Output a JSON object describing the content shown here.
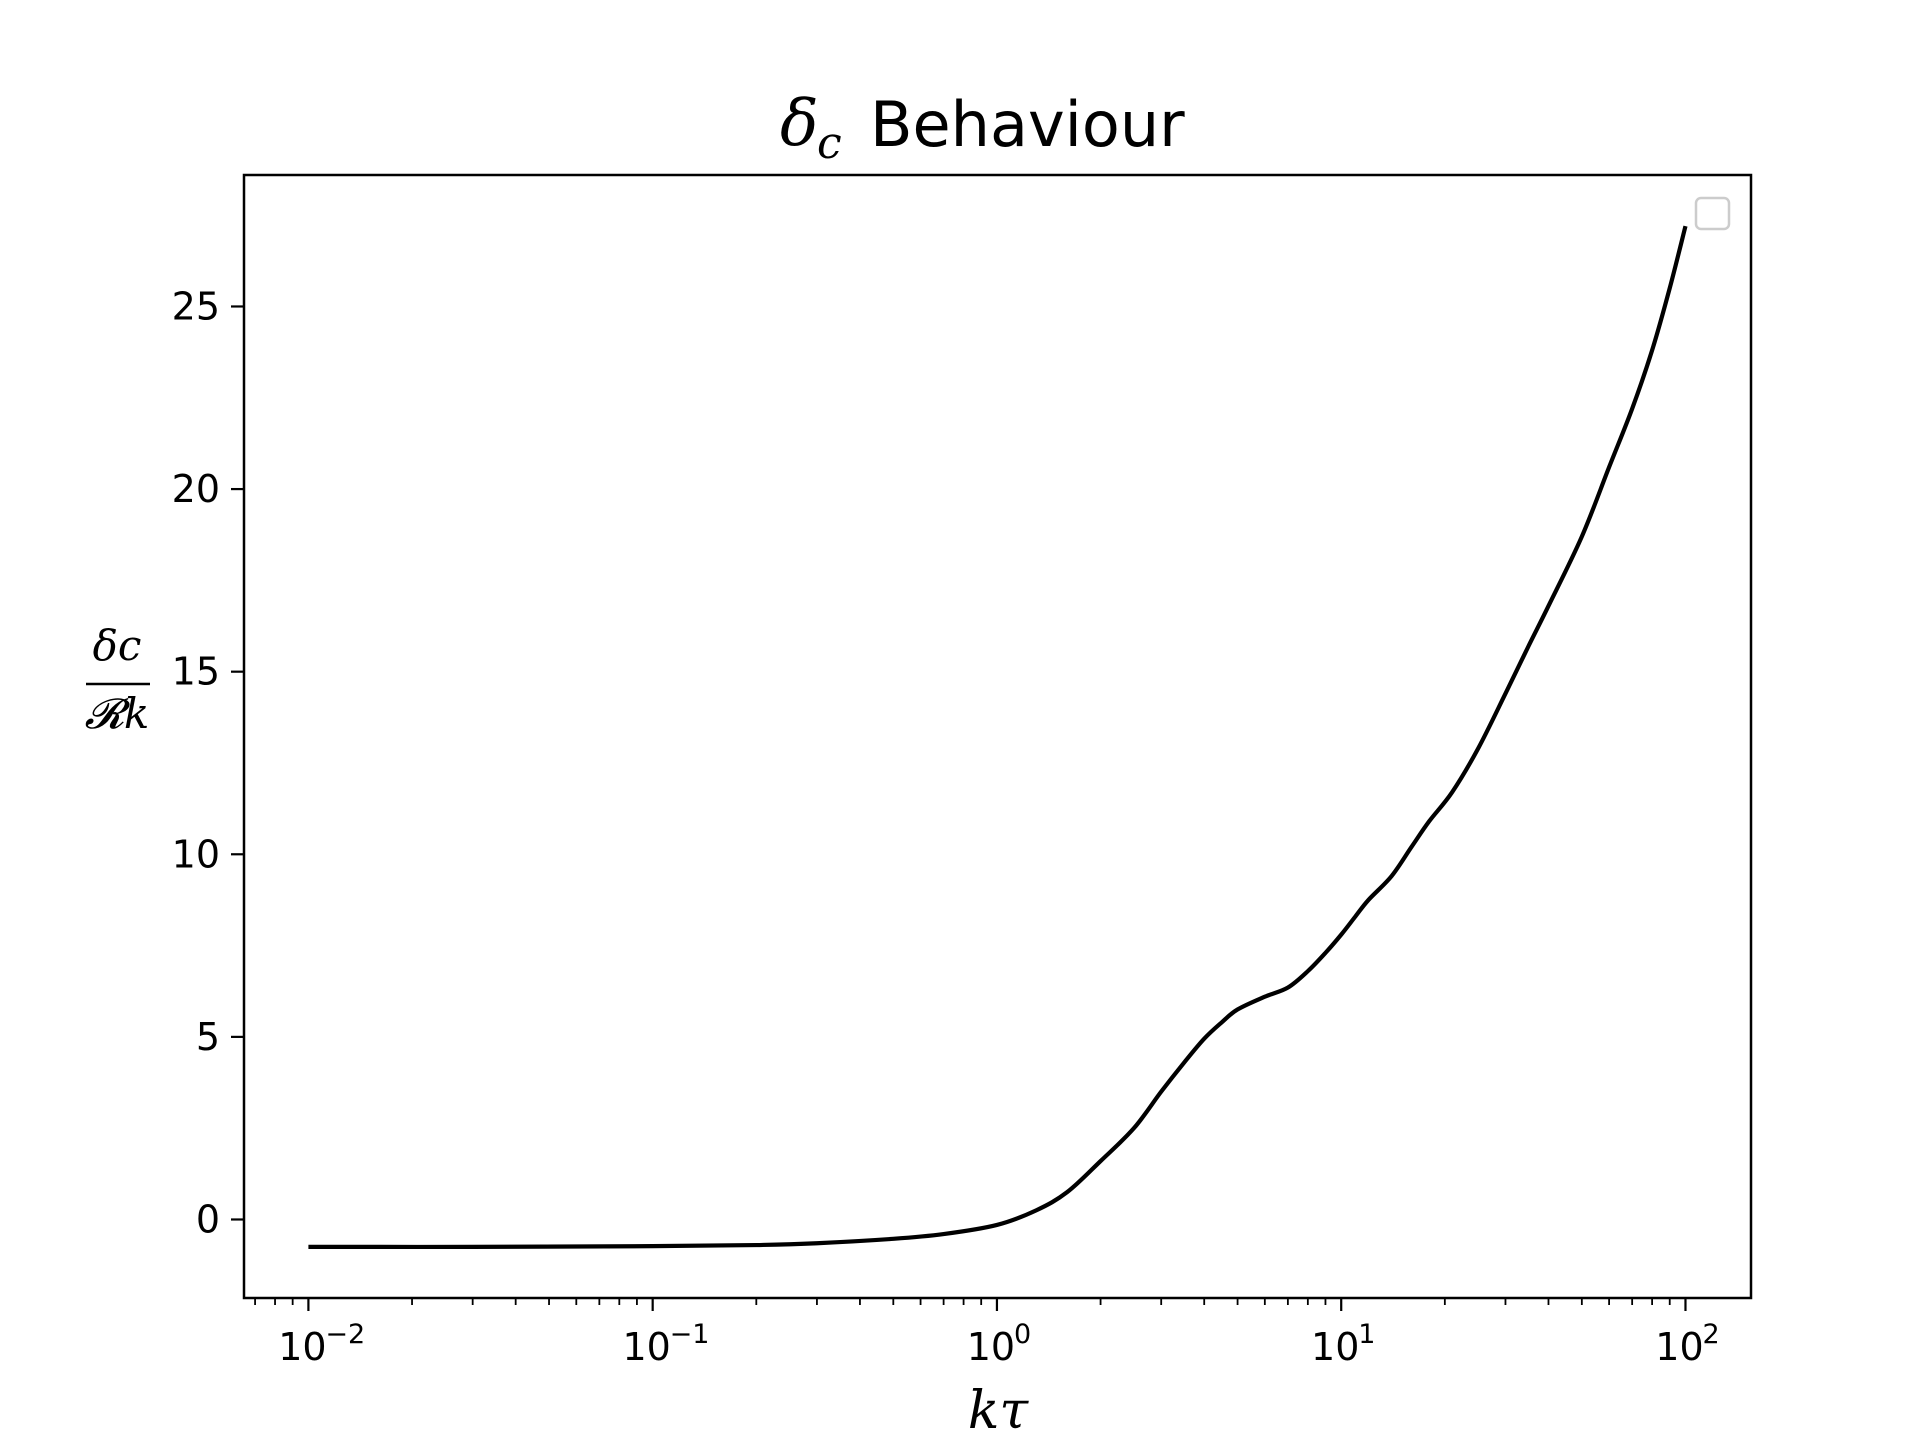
{
  "chart_data": {
    "type": "line",
    "title": {
      "symbol": "δ",
      "subscript": "c",
      "text": "Behaviour"
    },
    "xlabel": "kτ",
    "ylabel": {
      "numerator": "δc",
      "denominator": "𝓡k"
    },
    "x_scale": "log",
    "xlim": [
      0.0065,
      155
    ],
    "ylim": [
      -2.15,
      28.6
    ],
    "grid": false,
    "legend": {
      "placement": "top-right",
      "entries": []
    },
    "x_ticks": [
      {
        "value": 0.01,
        "base": "10",
        "exp": "−2"
      },
      {
        "value": 0.1,
        "base": "10",
        "exp": "−1"
      },
      {
        "value": 1,
        "base": "10",
        "exp": "0"
      },
      {
        "value": 10,
        "base": "10",
        "exp": "1"
      },
      {
        "value": 100,
        "base": "10",
        "exp": "2"
      }
    ],
    "y_ticks": [
      {
        "value": 0,
        "label": "0"
      },
      {
        "value": 5,
        "label": "5"
      },
      {
        "value": 10,
        "label": "10"
      },
      {
        "value": 15,
        "label": "15"
      },
      {
        "value": 20,
        "label": "20"
      },
      {
        "value": 25,
        "label": "25"
      }
    ],
    "series": [
      {
        "color": "#000000",
        "x": [
          0.01,
          0.03,
          0.1,
          0.2,
          0.3,
          0.5,
          0.7,
          1.0,
          1.3,
          1.6,
          2.0,
          2.5,
          3.0,
          3.5,
          4.0,
          4.5,
          5.0,
          6.0,
          7.0,
          8.0,
          9.0,
          10.0,
          11.0,
          12.0,
          14.0,
          16.0,
          18.0,
          21.0,
          25.0,
          30.0,
          35.0,
          40.0,
          50.0,
          60.0,
          70.0,
          80.0,
          90.0,
          100.0
        ],
        "y": [
          -0.75,
          -0.75,
          -0.73,
          -0.7,
          -0.65,
          -0.53,
          -0.4,
          -0.15,
          0.25,
          0.75,
          1.6,
          2.5,
          3.5,
          4.3,
          4.95,
          5.4,
          5.75,
          6.1,
          6.35,
          6.8,
          7.3,
          7.8,
          8.3,
          8.75,
          9.4,
          10.2,
          10.9,
          11.7,
          12.9,
          14.4,
          15.7,
          16.8,
          18.7,
          20.6,
          22.2,
          23.8,
          25.5,
          27.2
        ]
      }
    ]
  }
}
